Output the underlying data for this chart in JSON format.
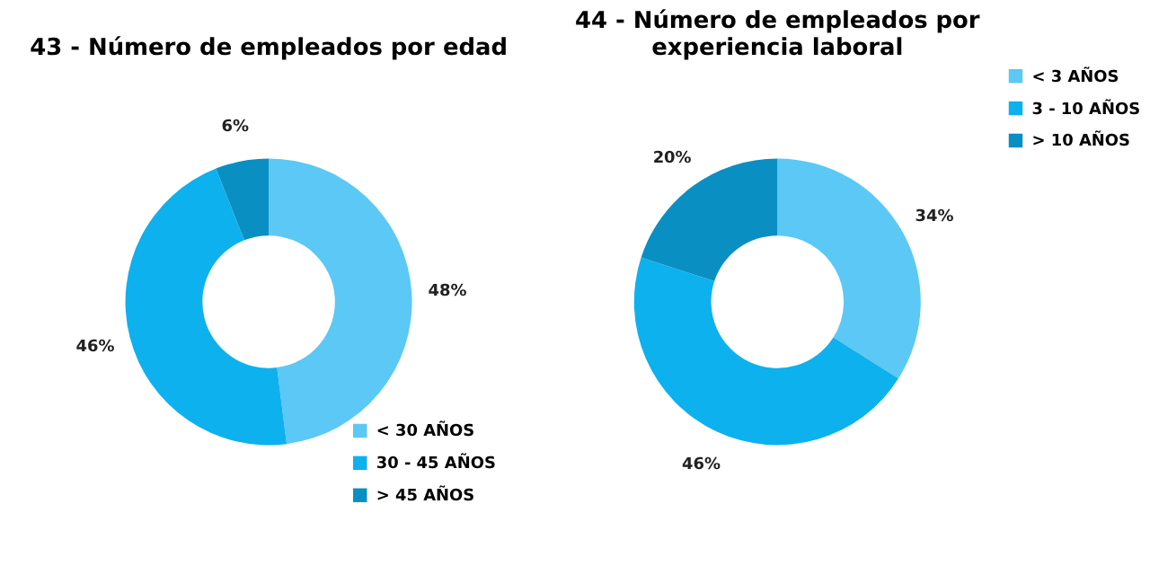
{
  "chart_data": [
    {
      "type": "donut",
      "title": "43 - Número de empleados por edad",
      "categories": [
        "< 30 AÑOS",
        "30 - 45 AÑOS",
        "> 45 AÑOS"
      ],
      "values": [
        48,
        46,
        6
      ],
      "value_labels": [
        "48%",
        "46%",
        "6%"
      ],
      "colors": [
        "#5bc8f5",
        "#0db1ed",
        "#0a8fc2"
      ],
      "legend": "bottom right"
    },
    {
      "type": "donut",
      "title": "44 - Número de empleados por experiencia laboral",
      "categories": [
        "< 3 AÑOS",
        "3 - 10 AÑOS",
        "> 10 AÑOS"
      ],
      "values": [
        34,
        46,
        20
      ],
      "value_labels": [
        "34%",
        "46%",
        "20%"
      ],
      "colors": [
        "#5bc8f5",
        "#0db1ed",
        "#0a8fc2"
      ],
      "legend": "right"
    }
  ]
}
